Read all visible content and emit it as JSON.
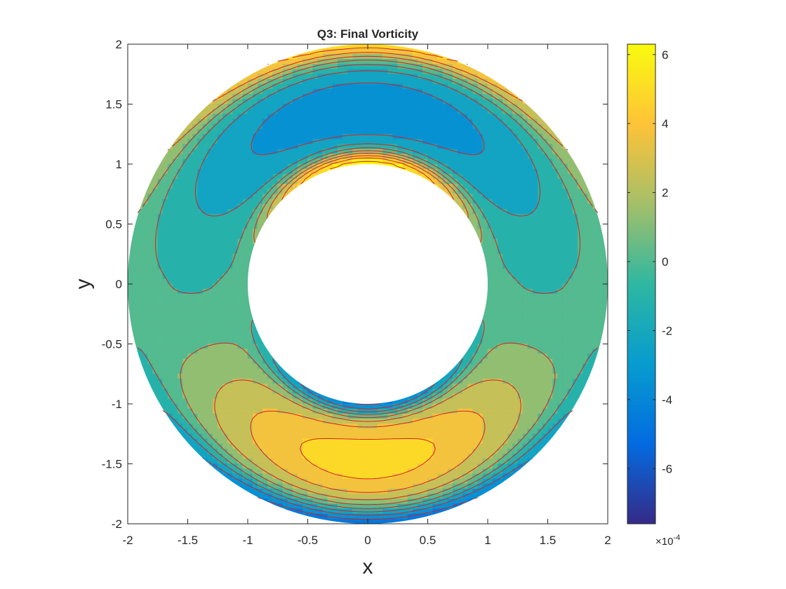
{
  "chart_data": {
    "type": "contour",
    "title": "Q3: Final Vorticity",
    "xlabel": "x",
    "ylabel": "y",
    "xlim": [
      -2,
      2
    ],
    "ylim": [
      -2,
      2
    ],
    "xticks": [
      "-2",
      "-1.5",
      "-1",
      "-0.5",
      "0",
      "0.5",
      "1",
      "1.5",
      "2"
    ],
    "yticks": [
      "2",
      "1.5",
      "1",
      "0.5",
      "0",
      "-0.5",
      "-1",
      "-1.5",
      "-2"
    ],
    "domain": {
      "shape": "annulus",
      "inner_radius": 1,
      "outer_radius": 2
    },
    "colorbar": {
      "colormap": "parula",
      "range": [
        -7.6,
        6.3
      ],
      "ticks": [
        "6",
        "4",
        "2",
        "0",
        "-2",
        "-4",
        "-6"
      ],
      "scale_label": "×10",
      "scale_exponent": "-4"
    },
    "contour_line_color": "#d62020",
    "field_features": [
      {
        "location": [
          0,
          1.48
        ],
        "sign": "negative",
        "approx_value": -4.8
      },
      {
        "location": [
          0,
          -1.48
        ],
        "sign": "positive",
        "approx_value": 4.0
      },
      {
        "location": [
          0,
          1.02
        ],
        "sign": "positive",
        "approx_value": 6.3
      },
      {
        "location": [
          0,
          -1.02
        ],
        "sign": "negative",
        "approx_value": -7.6
      },
      {
        "location": [
          0,
          1.98
        ],
        "sign": "positive",
        "approx_value": 4.0
      },
      {
        "location": [
          0,
          -1.98
        ],
        "sign": "negative",
        "approx_value": -6.0
      }
    ]
  }
}
